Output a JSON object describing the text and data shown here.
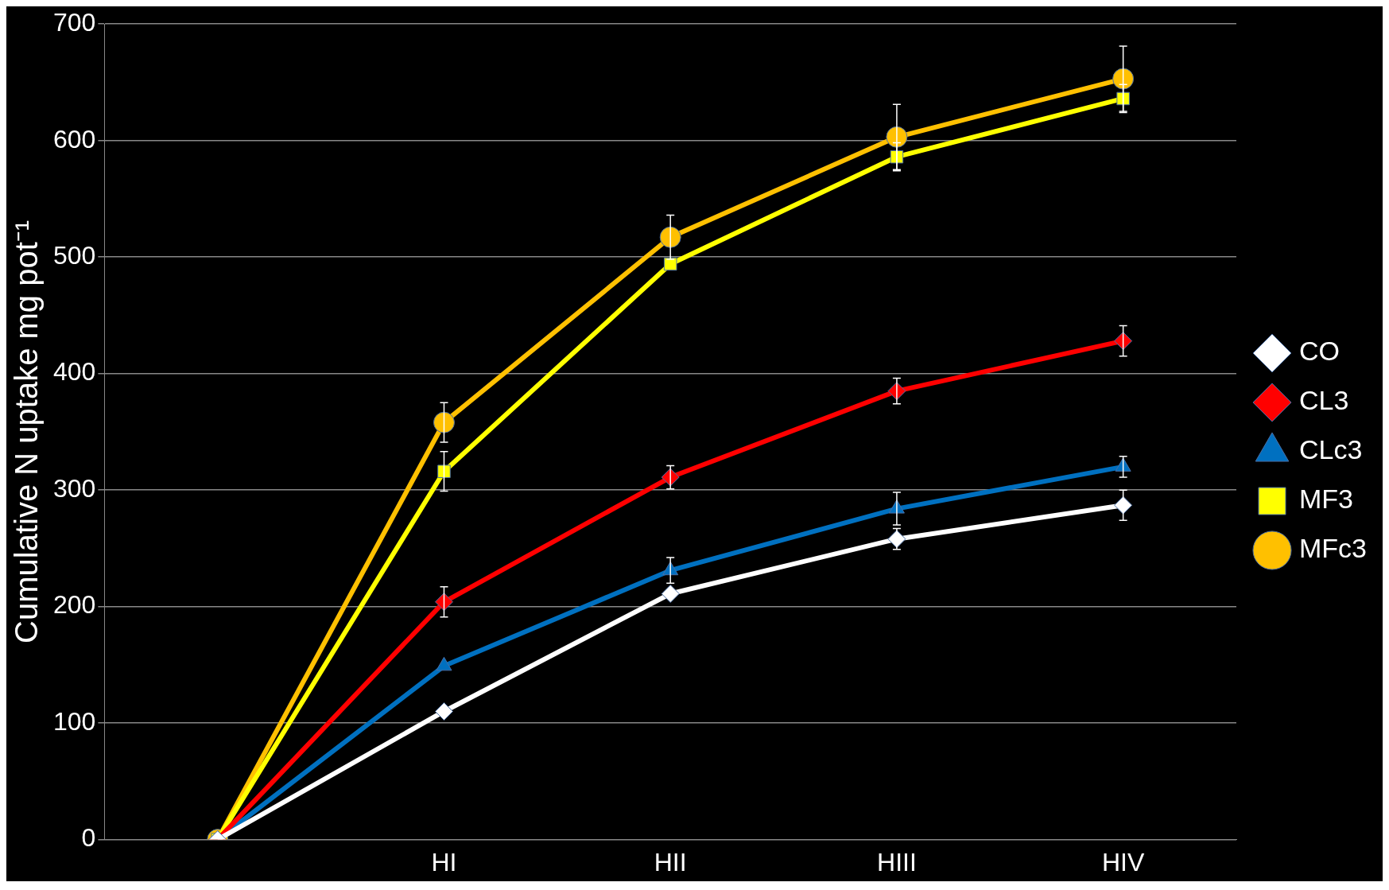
{
  "chart_data": {
    "type": "line",
    "ylabel": "Cumulative N uptake mg pot⁻¹",
    "categories": [
      null,
      "HI",
      "HII",
      "HIII",
      "HIV"
    ],
    "ylim": [
      0,
      700
    ],
    "yticks": [
      0,
      100,
      200,
      300,
      400,
      500,
      600,
      700
    ],
    "grid": "y",
    "legend": "right",
    "series": [
      {
        "name": "CO",
        "color": "#ffffff",
        "marker": "diamond",
        "values": [
          0,
          110,
          211,
          258,
          287
        ],
        "errors": [
          null,
          null,
          null,
          9,
          13
        ]
      },
      {
        "name": "CL3",
        "color": "#ff0000",
        "marker": "diamond",
        "values": [
          0,
          204,
          311,
          385,
          428
        ],
        "errors": [
          null,
          13,
          10,
          11,
          13
        ]
      },
      {
        "name": "CLc3",
        "color": "#0070c0",
        "marker": "triangle",
        "values": [
          0,
          149,
          231,
          284,
          320
        ],
        "errors": [
          null,
          null,
          11,
          14,
          9
        ]
      },
      {
        "name": "MF3",
        "color": "#ffff00",
        "marker": "square",
        "values": [
          0,
          316,
          494,
          586,
          636
        ],
        "errors": [
          null,
          17,
          null,
          12,
          12
        ]
      },
      {
        "name": "MFc3",
        "color": "#ffc000",
        "marker": "circle",
        "values": [
          0,
          358,
          517,
          603,
          653
        ],
        "errors": [
          null,
          17,
          19,
          28,
          28
        ]
      }
    ]
  }
}
